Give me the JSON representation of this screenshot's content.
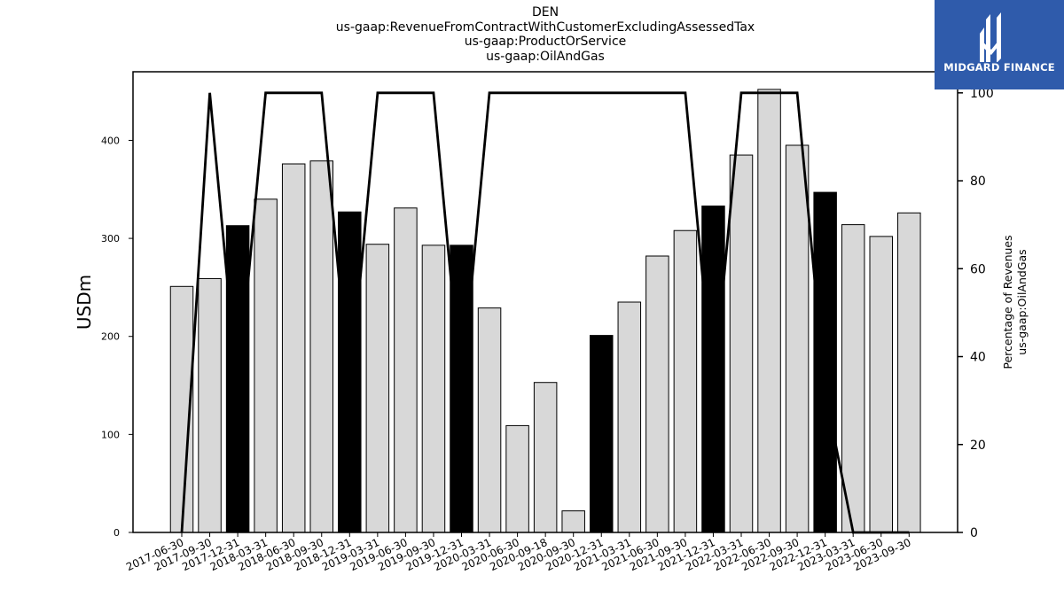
{
  "title_lines": [
    "DEN",
    "us-gaap:RevenueFromContractWithCustomerExcludingAssessedTax",
    "us-gaap:ProductOrService",
    "us-gaap:OilAndGas"
  ],
  "logo": {
    "text": "MIDGARD FINANCE",
    "icon": "midgard-logo-icon",
    "background": "#2f5bab"
  },
  "chart_data": {
    "type": "bar",
    "categories": [
      "2017-06-30",
      "2017-09-30",
      "2017-12-31",
      "2018-03-31",
      "2018-06-30",
      "2018-09-30",
      "2018-12-31",
      "2019-03-31",
      "2019-06-30",
      "2019-09-30",
      "2019-12-31",
      "2020-03-31",
      "2020-06-30",
      "2020-09-18",
      "2020-09-30",
      "2020-12-31",
      "2021-03-31",
      "2021-06-30",
      "2021-09-30",
      "2021-12-31",
      "2022-03-31",
      "2022-06-30",
      "2022-09-30",
      "2022-12-31",
      "2023-03-31",
      "2023-06-30",
      "2023-09-30"
    ],
    "series": [
      {
        "axis": "left",
        "type": "bar",
        "values": [
          251,
          259,
          313,
          340,
          376,
          379,
          327,
          294,
          331,
          293,
          293,
          229,
          109,
          153,
          22,
          201,
          235,
          282,
          308,
          333,
          385,
          452,
          395,
          347,
          314,
          302,
          326
        ],
        "colors": [
          "#d8d8d8",
          "#d8d8d8",
          "#000000",
          "#d8d8d8",
          "#d8d8d8",
          "#d8d8d8",
          "#000000",
          "#d8d8d8",
          "#d8d8d8",
          "#d8d8d8",
          "#000000",
          "#d8d8d8",
          "#d8d8d8",
          "#d8d8d8",
          "#d8d8d8",
          "#000000",
          "#d8d8d8",
          "#d8d8d8",
          "#d8d8d8",
          "#000000",
          "#d8d8d8",
          "#d8d8d8",
          "#d8d8d8",
          "#000000",
          "#d8d8d8",
          "#d8d8d8",
          "#d8d8d8"
        ]
      },
      {
        "axis": "right",
        "type": "line",
        "color": "#000000",
        "values": [
          0,
          100,
          32,
          100,
          100,
          100,
          32,
          100,
          100,
          100,
          32,
          100,
          100,
          100,
          100,
          100,
          100,
          100,
          100,
          32,
          100,
          100,
          100,
          32,
          0,
          0,
          0
        ]
      }
    ],
    "ylabel": "USDm",
    "ylim": [
      0,
      470
    ],
    "yticks": [
      0,
      100,
      200,
      300,
      400
    ],
    "y2label_lines": [
      "Percentage of Revenues",
      "us-gaap:OilAndGas"
    ],
    "y2lim": [
      0,
      104.8
    ],
    "y2ticks": [
      0,
      20,
      40,
      60,
      80,
      100
    ],
    "grid": false,
    "legend": "none"
  }
}
